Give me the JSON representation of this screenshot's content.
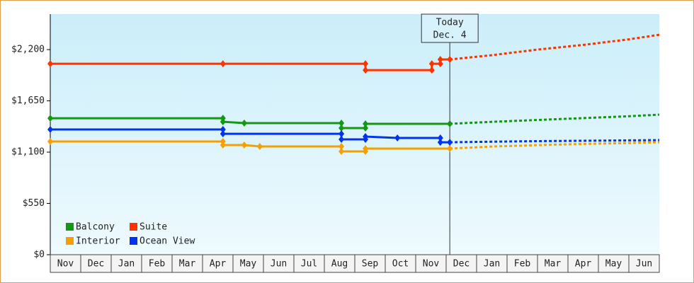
{
  "chart_data": {
    "type": "line",
    "categories": [
      "Nov",
      "Dec",
      "Jan",
      "Feb",
      "Mar",
      "Apr",
      "May",
      "Jun",
      "Jul",
      "Aug",
      "Sep",
      "Oct",
      "Nov",
      "Dec",
      "Jan",
      "Feb",
      "Mar",
      "Apr",
      "May",
      "Jun"
    ],
    "xlim": [
      0,
      20
    ],
    "ylim": [
      0,
      2580
    ],
    "yticks": [
      {
        "value": 0,
        "label": "$0"
      },
      {
        "value": 550,
        "label": "$550"
      },
      {
        "value": 1100,
        "label": "$1,100"
      },
      {
        "value": 1650,
        "label": "$1,650"
      },
      {
        "value": 2200,
        "label": "$2,200"
      }
    ],
    "grid": false,
    "today": {
      "x": 13.12,
      "label": "Today",
      "date": "Dec. 4"
    },
    "series": [
      {
        "name": "Balcony",
        "color": "#119911",
        "x": [
          0,
          5.67,
          5.67,
          6.37,
          9.56,
          9.56,
          10.35,
          10.35,
          13.12
        ],
        "values": [
          1464,
          1464,
          1426,
          1411,
          1411,
          1358,
          1358,
          1404,
          1404
        ],
        "forecast": {
          "x": [
            13.12,
            14.5,
            16,
            17.5,
            19,
            20
          ],
          "values": [
            1404,
            1425,
            1445,
            1465,
            1485,
            1502
          ]
        }
      },
      {
        "name": "Suite",
        "color": "#ff3300",
        "x": [
          0,
          5.67,
          10.35,
          10.35,
          12.53,
          12.53,
          12.81,
          12.81,
          13.12
        ],
        "values": [
          2048,
          2048,
          2048,
          1980,
          1980,
          2048,
          2048,
          2094,
          2094
        ],
        "forecast": {
          "x": [
            13.12,
            14.5,
            16,
            17.5,
            19,
            20
          ],
          "values": [
            2094,
            2140,
            2200,
            2250,
            2310,
            2359
          ]
        }
      },
      {
        "name": "Interior",
        "color": "#f5a000",
        "x": [
          0,
          5.67,
          5.67,
          6.37,
          6.88,
          9.56,
          9.56,
          10.35,
          10.35,
          13.12
        ],
        "values": [
          1214,
          1214,
          1176,
          1176,
          1161,
          1161,
          1108,
          1108,
          1138,
          1138
        ],
        "forecast": {
          "x": [
            13.12,
            14.5,
            16,
            17.5,
            19,
            20
          ],
          "values": [
            1138,
            1160,
            1175,
            1188,
            1198,
            1206
          ]
        }
      },
      {
        "name": "Ocean View",
        "color": "#0033ee",
        "x": [
          0,
          5.67,
          5.67,
          9.56,
          9.56,
          10.35,
          10.35,
          11.4,
          12.81,
          12.81,
          13.12
        ],
        "values": [
          1343,
          1343,
          1297,
          1297,
          1237,
          1237,
          1267,
          1252,
          1252,
          1206,
          1206
        ],
        "forecast": {
          "x": [
            13.12,
            14.5,
            16,
            17.5,
            19,
            20
          ],
          "values": [
            1206,
            1212,
            1218,
            1222,
            1226,
            1229
          ]
        }
      }
    ]
  }
}
